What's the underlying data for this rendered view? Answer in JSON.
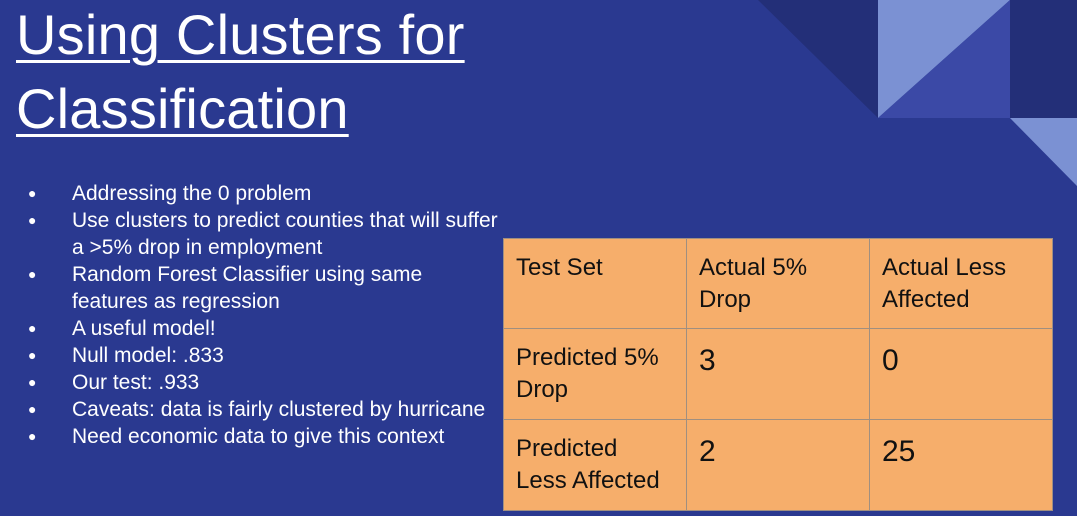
{
  "slide": {
    "title_line1": "Using Clusters for",
    "title_line2": "Classification",
    "bullets": [
      "Addressing the 0 problem",
      "Use clusters to predict counties that will suffer a >5% drop in employment",
      "Random Forest Classifier using same features as regression",
      "A useful model!",
      "Null model: .833",
      "Our test: .933",
      "Caveats: data is fairly clustered by hurricane",
      "Need economic data to give this context"
    ],
    "table": {
      "corner": "Test Set",
      "col1": "Actual 5% Drop",
      "col2": "Actual Less Affected",
      "row1_label": "Predicted 5% Drop",
      "row2_label": "Predicted Less Affected",
      "r1c1": "3",
      "r1c2": "0",
      "r2c1": "2",
      "r2c2": "25"
    }
  },
  "colors": {
    "background": "#2a3990",
    "table_fill": "#f6ae6b",
    "decor_light": "#7b91d3",
    "decor_mid": "#3b49a6",
    "decor_dark": "#232f78"
  }
}
